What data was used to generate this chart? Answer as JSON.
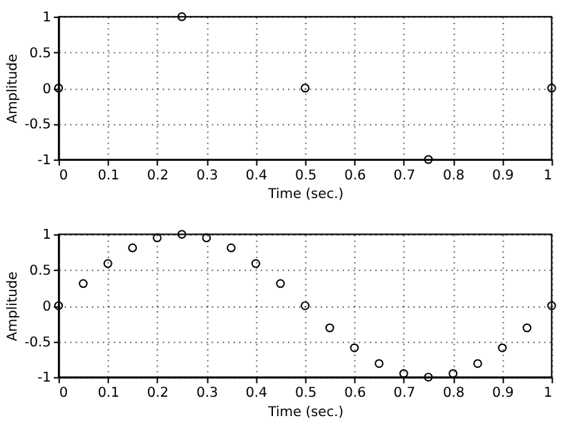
{
  "chart_data": [
    {
      "type": "scatter",
      "xlabel": "Time (sec.)",
      "ylabel": "Amplitude",
      "x": [
        0,
        0.25,
        0.5,
        0.75,
        1
      ],
      "series": [
        {
          "color": "#000000",
          "values": [
            0,
            1,
            0,
            -1,
            0
          ]
        }
      ],
      "xlim": [
        0,
        1
      ],
      "xticks": [
        0,
        0.1,
        0.2,
        0.3,
        0.4,
        0.5,
        0.6,
        0.7,
        0.8,
        0.9,
        1
      ],
      "ylim": [
        -1,
        1
      ],
      "yticks": [
        -1,
        -0.5,
        0,
        0.5,
        1
      ],
      "grid": true,
      "marker": "circle"
    },
    {
      "type": "scatter",
      "xlabel": "Time (sec.)",
      "ylabel": "Amplitude",
      "x": [
        0,
        0.05,
        0.1,
        0.15,
        0.2,
        0.25,
        0.3,
        0.35,
        0.4,
        0.45,
        0.5,
        0.55,
        0.6,
        0.65,
        0.7,
        0.75,
        0.8,
        0.85,
        0.9,
        0.95,
        1
      ],
      "series": [
        {
          "color": "#000000",
          "values": [
            0,
            0.31,
            0.59,
            0.81,
            0.95,
            1,
            0.95,
            0.81,
            0.59,
            0.31,
            0,
            -0.31,
            -0.59,
            -0.81,
            -0.95,
            -1,
            -0.95,
            -0.81,
            -0.59,
            -0.31,
            0
          ]
        }
      ],
      "xlim": [
        0,
        1
      ],
      "xticks": [
        0,
        0.1,
        0.2,
        0.3,
        0.4,
        0.5,
        0.6,
        0.7,
        0.8,
        0.9,
        1
      ],
      "ylim": [
        -1,
        1
      ],
      "yticks": [
        -1,
        -0.5,
        0,
        0.5,
        1
      ],
      "grid": true,
      "marker": "circle"
    }
  ]
}
